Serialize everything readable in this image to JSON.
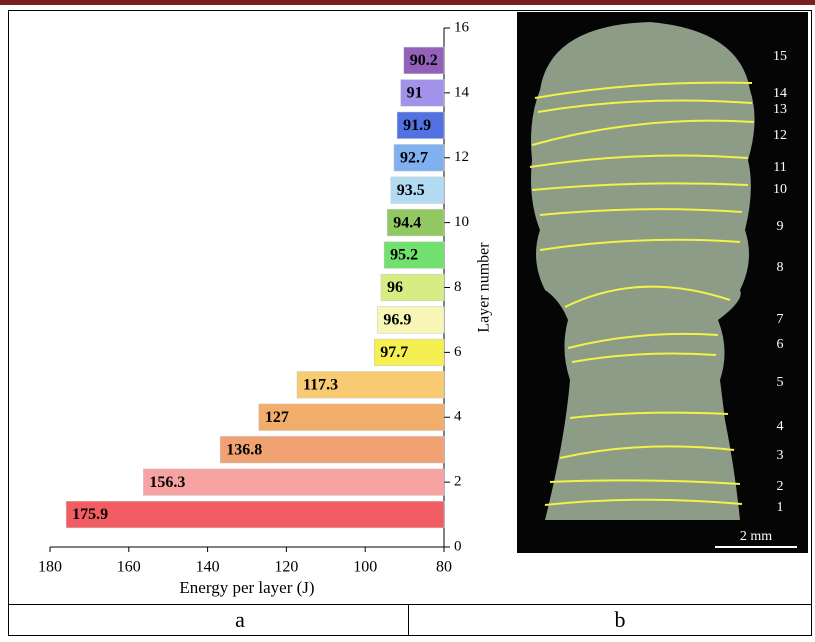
{
  "chart_data": {
    "type": "barh",
    "xlabel": "Energy per layer (J)",
    "ylabel": "Layer number",
    "y": [
      1,
      2,
      3,
      4,
      5,
      6,
      7,
      8,
      9,
      10,
      11,
      12,
      13,
      14,
      15
    ],
    "values": [
      175.9,
      156.3,
      136.8,
      127,
      117.3,
      97.7,
      96.9,
      96,
      95.2,
      94.4,
      93.5,
      92.7,
      91.9,
      91,
      90.2
    ],
    "colors": [
      "#f25c63",
      "#f7a3a1",
      "#f0a273",
      "#f2ac6c",
      "#f8cb72",
      "#f6ef52",
      "#f8f6b6",
      "#d8ec84",
      "#72e06e",
      "#92c862",
      "#b2daf2",
      "#80b0f0",
      "#5272e2",
      "#a292ea",
      "#9262ba"
    ],
    "xlim": [
      180,
      80
    ],
    "xticks": [
      180,
      160,
      140,
      120,
      100,
      80
    ],
    "ylim": [
      0,
      16
    ],
    "yticks": [
      0,
      2,
      4,
      6,
      8,
      10,
      12,
      14,
      16
    ]
  },
  "micrograph": {
    "layer_labels": [
      "1",
      "2",
      "3",
      "4",
      "5",
      "6",
      "7",
      "8",
      "9",
      "10",
      "11",
      "12",
      "13",
      "14",
      "15"
    ],
    "scale_bar": "2 mm"
  },
  "captions": [
    "a",
    "b"
  ]
}
